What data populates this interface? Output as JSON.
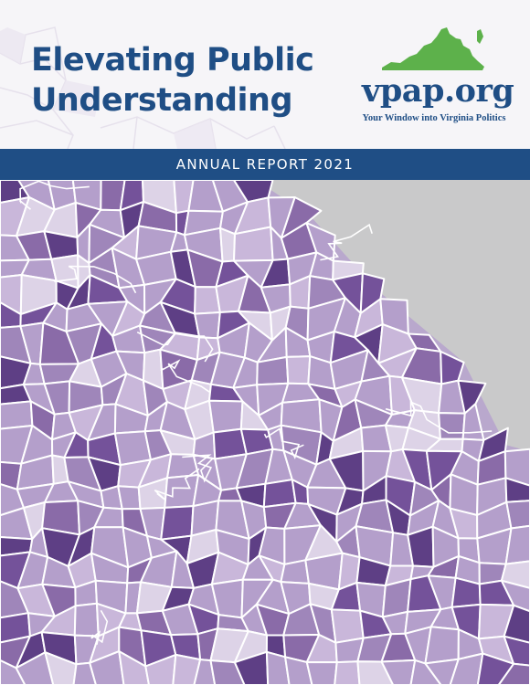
{
  "cover": {
    "title_line1": "Elevating Public",
    "title_line2": "Understanding",
    "banner": "ANNUAL REPORT 2021",
    "colors": {
      "navy": "#1f4e85",
      "green": "#5db14b",
      "map_background": "#c9c9ca",
      "district_shades": [
        "#ddd3e7",
        "#c9b7da",
        "#b49fcb",
        "#9f86ba",
        "#8a6ba8",
        "#74529a",
        "#5e3f85"
      ]
    }
  },
  "logo": {
    "wordmark": "vpap.org",
    "tagline": "Your Window into Virginia Politics",
    "icon": "virginia-state-icon"
  },
  "map": {
    "kind": "choropleth map of Virginia precincts",
    "legend": "none"
  }
}
